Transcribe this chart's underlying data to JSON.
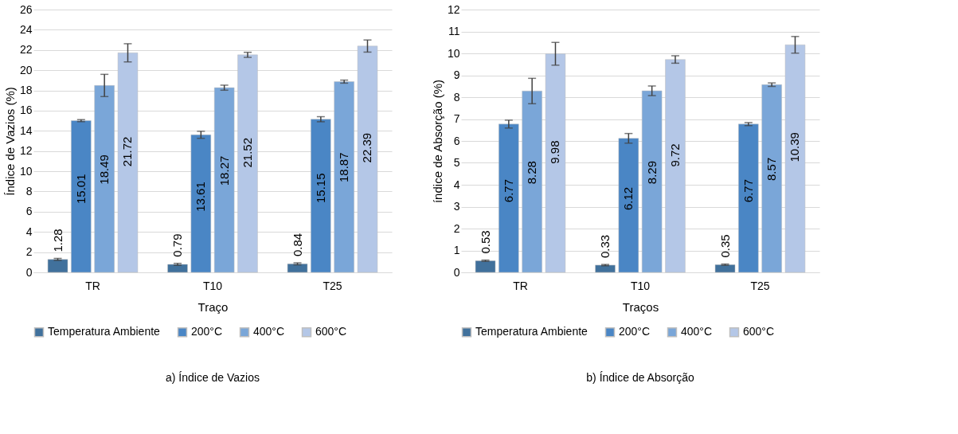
{
  "chart_data": [
    {
      "type": "bar",
      "xlabel": "Traço",
      "ylabel": "Índice de Vazios (%)",
      "categories": [
        "TR",
        "T10",
        "T25"
      ],
      "ylim": [
        0,
        26
      ],
      "yticks": [
        0,
        2,
        4,
        6,
        8,
        10,
        12,
        14,
        16,
        18,
        20,
        22,
        24,
        26
      ],
      "grid": "y",
      "legend": "bottom",
      "data_labels": true,
      "annotations": [
        "a) Índice de Vazios"
      ],
      "series": [
        {
          "name": "Temperatura Ambiente",
          "color": "#41719c",
          "values": [
            1.28,
            0.79,
            0.84
          ],
          "errors": [
            0.1,
            0.1,
            0.1
          ]
        },
        {
          "name": "200°C",
          "color": "#4a86c5",
          "values": [
            15.01,
            13.61,
            15.15
          ],
          "errors": [
            0.1,
            0.35,
            0.25
          ]
        },
        {
          "name": "400°C",
          "color": "#7aa6d8",
          "values": [
            18.49,
            18.27,
            18.87
          ],
          "errors": [
            1.1,
            0.25,
            0.15
          ]
        },
        {
          "name": "600°C",
          "color": "#b4c7e7",
          "values": [
            21.72,
            21.52,
            22.39
          ],
          "errors": [
            0.9,
            0.25,
            0.6
          ]
        }
      ]
    },
    {
      "type": "bar",
      "xlabel": "Traços",
      "ylabel": "índice de Absorção (%)",
      "categories": [
        "TR",
        "T10",
        "T25"
      ],
      "ylim": [
        0,
        12
      ],
      "yticks": [
        0,
        1,
        2,
        3,
        4,
        5,
        6,
        7,
        8,
        9,
        10,
        11,
        12
      ],
      "grid": "y",
      "legend": "bottom",
      "data_labels": true,
      "annotations": [
        "b)  Índice de Absorção"
      ],
      "series": [
        {
          "name": "Temperatura Ambiente",
          "color": "#41719c",
          "values": [
            0.53,
            0.33,
            0.35
          ],
          "errors": [
            0.03,
            0.03,
            0.03
          ]
        },
        {
          "name": "200°C",
          "color": "#4a86c5",
          "values": [
            6.77,
            6.12,
            6.77
          ],
          "errors": [
            0.18,
            0.22,
            0.07
          ]
        },
        {
          "name": "400°C",
          "color": "#7aa6d8",
          "values": [
            8.28,
            8.29,
            8.57
          ],
          "errors": [
            0.58,
            0.22,
            0.08
          ]
        },
        {
          "name": "600°C",
          "color": "#b4c7e7",
          "values": [
            9.98,
            9.72,
            10.39
          ],
          "errors": [
            0.52,
            0.17,
            0.38
          ]
        }
      ]
    }
  ]
}
